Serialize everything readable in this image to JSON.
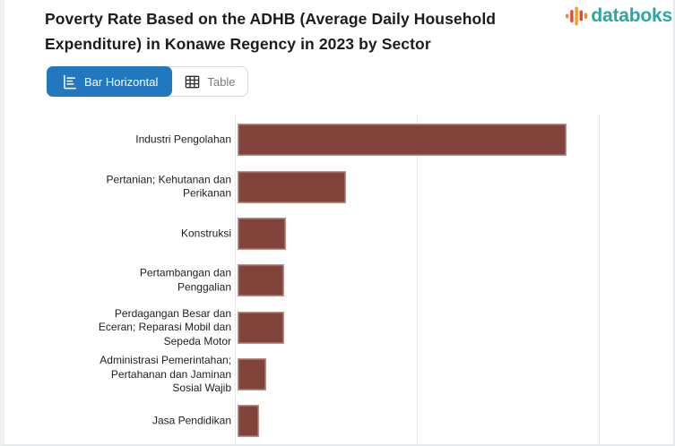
{
  "header": {
    "title": "Poverty Rate Based on the ADHB (Average Daily Household Expenditure) in Konawe Regency in 2023 by Sector",
    "title_lines": [
      "Poverty Rate Based on the ADHB (Average Daily Household",
      "Expenditure) in Konawe Regency in 2023 by Sector"
    ]
  },
  "logo": {
    "text": "databoks",
    "icon": "pulse-bars-icon",
    "text_color": "#2aa7a3",
    "icon_colors": [
      "#ef8b2c",
      "#e2493b",
      "#f59d26"
    ]
  },
  "toolbar": {
    "tabs": [
      {
        "label": "Bar Horizontal",
        "icon": "bar-horizontal-chart-icon",
        "active": true
      },
      {
        "label": "Table",
        "icon": "table-grid-icon",
        "active": false
      }
    ],
    "active_color": "#2278be"
  },
  "chart_data": {
    "type": "bar",
    "orientation": "horizontal",
    "title": "Poverty Rate Based on the ADHB (Average Daily Household Expenditure) in Konawe Regency in 2023 by Sector",
    "categories": [
      "Industri Pengolahan",
      "Pertanian; Kehutanan dan Perikanan",
      "Konstruksi",
      "Pertambangan dan Penggalian",
      "Perdagangan Besar dan Eceran; Reparasi Mobil dan Sepeda Motor",
      "Administrasi Pemerintahan; Pertahanan dan Jaminan Sosial Wajib",
      "Jasa Pendidikan"
    ],
    "category_lines": [
      [
        "Industri Pengolahan"
      ],
      [
        "Pertanian; Kehutanan dan",
        "Perikanan"
      ],
      [
        "Konstruksi"
      ],
      [
        "Pertambangan dan",
        "Penggalian"
      ],
      [
        "Perdagangan Besar dan",
        "Eceran; Reparasi Mobil dan",
        "Sepeda Motor"
      ],
      [
        "Administrasi Pemerintahan;",
        "Pertahanan dan Jaminan",
        "Sosial Wajib"
      ],
      [
        "Jasa Pendidikan"
      ]
    ],
    "values": [
      1.81,
      0.6,
      0.27,
      0.26,
      0.26,
      0.16,
      0.12
    ],
    "value_unit": "gridline units (x-axis tick labels cropped out of view)",
    "xlim": [
      0,
      2.43
    ],
    "gridlines": {
      "x_positions": [
        0,
        1,
        2
      ],
      "visible": true
    },
    "bar_color": "#82443a",
    "legend": "none",
    "x_axis_labels_visible": false
  }
}
